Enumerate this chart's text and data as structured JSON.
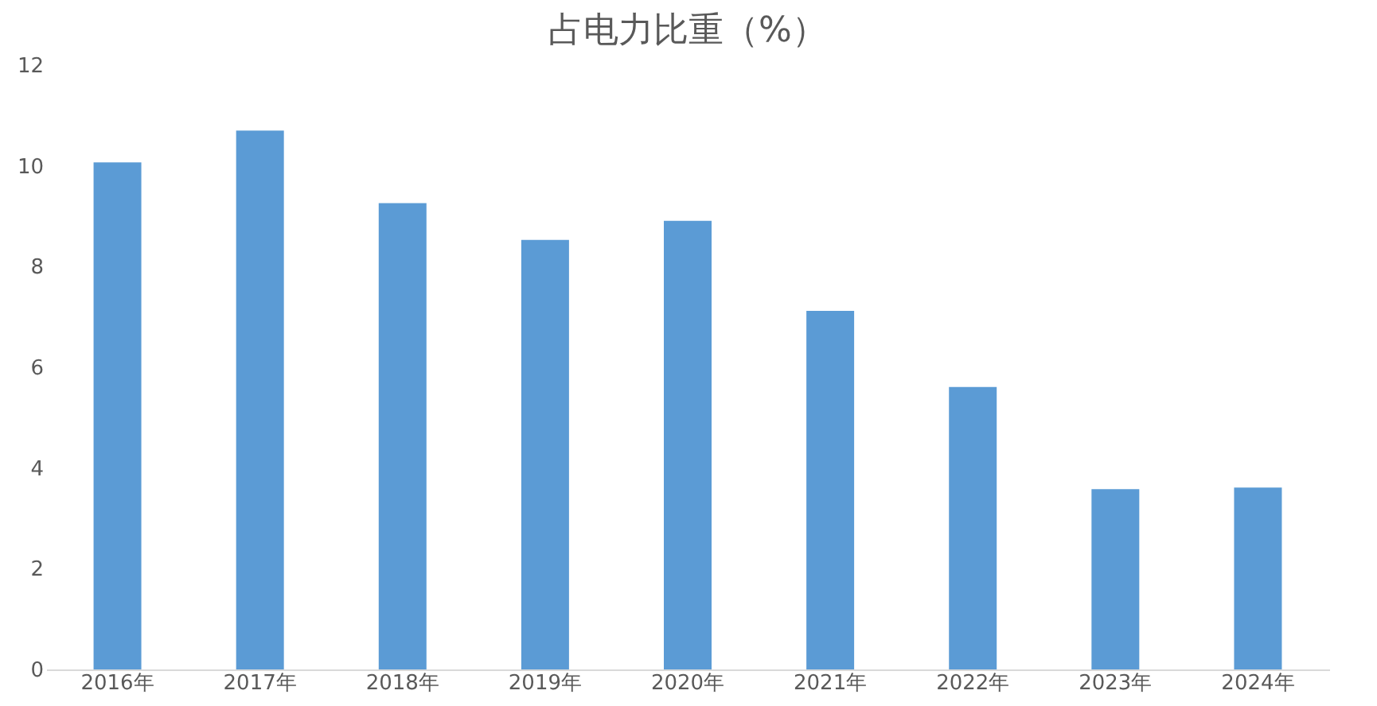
{
  "chart_data": {
    "type": "bar",
    "title": "占电力比重（%）",
    "categories": [
      "2016年",
      "2017年",
      "2018年",
      "2019年",
      "2020年",
      "2021年",
      "2022年",
      "2023年",
      "2024年"
    ],
    "values": [
      10.07,
      10.7,
      9.26,
      8.53,
      8.91,
      7.12,
      5.61,
      3.58,
      3.61
    ],
    "color": "#5b9bd5",
    "ylim": [
      0,
      12
    ],
    "yticks": [
      0,
      2,
      4,
      6,
      8,
      10,
      12
    ],
    "grid": false
  }
}
